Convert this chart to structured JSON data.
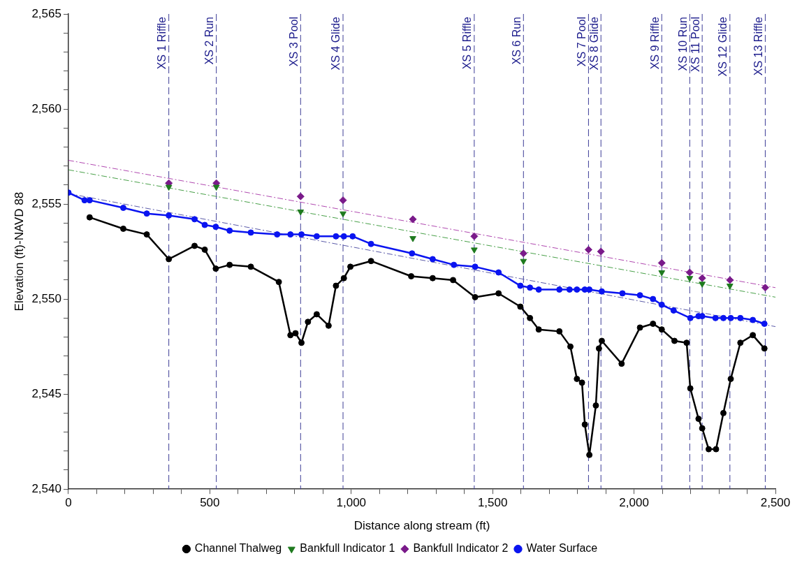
{
  "chart_data": {
    "type": "line",
    "xlabel": "Distance along stream (ft)",
    "ylabel": "Elevation (ft)-NAVD 88",
    "xlim": [
      0,
      2500
    ],
    "xticks": [
      {
        "value": 0,
        "label": "0"
      },
      {
        "value": 100,
        "label": null
      },
      {
        "value": 200,
        "label": null
      },
      {
        "value": 300,
        "label": null
      },
      {
        "value": 400,
        "label": null
      },
      {
        "value": 500,
        "label": "500"
      },
      {
        "value": 600,
        "label": null
      },
      {
        "value": 700,
        "label": null
      },
      {
        "value": 800,
        "label": null
      },
      {
        "value": 900,
        "label": null
      },
      {
        "value": 1000,
        "label": "1,000"
      },
      {
        "value": 1100,
        "label": null
      },
      {
        "value": 1200,
        "label": null
      },
      {
        "value": 1300,
        "label": null
      },
      {
        "value": 1400,
        "label": null
      },
      {
        "value": 1500,
        "label": "1,500"
      },
      {
        "value": 1600,
        "label": null
      },
      {
        "value": 1700,
        "label": null
      },
      {
        "value": 1800,
        "label": null
      },
      {
        "value": 1900,
        "label": null
      },
      {
        "value": 2000,
        "label": "2,000"
      },
      {
        "value": 2100,
        "label": null
      },
      {
        "value": 2200,
        "label": null
      },
      {
        "value": 2300,
        "label": null
      },
      {
        "value": 2400,
        "label": null
      },
      {
        "value": 2500,
        "label": "2,500"
      }
    ],
    "ylim": [
      2540,
      2565
    ],
    "yticks": [
      {
        "value": 2540,
        "label": "2,540"
      },
      {
        "value": 2541,
        "label": null
      },
      {
        "value": 2542,
        "label": null
      },
      {
        "value": 2543,
        "label": null
      },
      {
        "value": 2544,
        "label": null
      },
      {
        "value": 2545,
        "label": "2,545"
      },
      {
        "value": 2546,
        "label": null
      },
      {
        "value": 2547,
        "label": null
      },
      {
        "value": 2548,
        "label": null
      },
      {
        "value": 2549,
        "label": null
      },
      {
        "value": 2550,
        "label": "2,550"
      },
      {
        "value": 2551,
        "label": null
      },
      {
        "value": 2552,
        "label": null
      },
      {
        "value": 2553,
        "label": null
      },
      {
        "value": 2554,
        "label": null
      },
      {
        "value": 2555,
        "label": "2,555"
      },
      {
        "value": 2556,
        "label": null
      },
      {
        "value": 2557,
        "label": null
      },
      {
        "value": 2558,
        "label": null
      },
      {
        "value": 2559,
        "label": null
      },
      {
        "value": 2560,
        "label": "2,560"
      },
      {
        "value": 2561,
        "label": null
      },
      {
        "value": 2562,
        "label": null
      },
      {
        "value": 2563,
        "label": null
      },
      {
        "value": 2564,
        "label": null
      },
      {
        "value": 2565,
        "label": "2,565"
      }
    ],
    "grid": false,
    "legend": "bottom",
    "series": [
      {
        "name": "Channel Thalweg",
        "color": "#000000",
        "marker": "circle",
        "line_style": "solid",
        "x": [
          75,
          194,
          277,
          355,
          446,
          482,
          521,
          570,
          645,
          744,
          785,
          803,
          824,
          847,
          878,
          920,
          946,
          974,
          997,
          1070,
          1212,
          1288,
          1360,
          1438,
          1521,
          1598,
          1632,
          1663,
          1736,
          1775,
          1798,
          1816,
          1826,
          1842,
          1865,
          1876,
          1886,
          1956,
          2021,
          2067,
          2098,
          2143,
          2186,
          2199,
          2228,
          2241,
          2264,
          2290,
          2316,
          2342,
          2376,
          2420,
          2461
        ],
        "values": [
          2554.3,
          2553.7,
          2553.4,
          2552.1,
          2552.8,
          2552.6,
          2551.6,
          2551.8,
          2551.7,
          2550.9,
          2548.1,
          2548.2,
          2547.7,
          2548.8,
          2549.2,
          2548.6,
          2550.7,
          2551.1,
          2551.7,
          2552.0,
          2551.2,
          2551.1,
          2551.0,
          2550.1,
          2550.3,
          2549.6,
          2549.0,
          2548.4,
          2548.3,
          2547.5,
          2545.8,
          2545.6,
          2543.4,
          2541.8,
          2544.4,
          2547.4,
          2547.8,
          2546.6,
          2548.5,
          2548.7,
          2548.4,
          2547.8,
          2547.7,
          2545.3,
          2543.7,
          2543.2,
          2542.1,
          2542.1,
          2544.0,
          2545.8,
          2547.7,
          2548.1,
          2547.4
        ]
      },
      {
        "name": "Bankfull Indicator 1",
        "type": "scatter",
        "color": "#1e7a1e",
        "marker": "triangle",
        "x": [
          355,
          523,
          821,
          971,
          1218,
          1435,
          1609,
          2098,
          2197,
          2241,
          2339
        ],
        "values": [
          2555.9,
          2555.9,
          2554.6,
          2554.5,
          2553.2,
          2552.6,
          2552.0,
          2551.4,
          2551.1,
          2550.8,
          2550.7
        ]
      },
      {
        "name": "Bankfull Indicator 2",
        "type": "scatter",
        "color": "#7a1a8a",
        "marker": "diamond",
        "x": [
          355,
          523,
          821,
          971,
          1218,
          1435,
          1609,
          1839,
          1883,
          2098,
          2197,
          2241,
          2339,
          2464
        ],
        "values": [
          2556.1,
          2556.1,
          2555.4,
          2555.2,
          2554.2,
          2553.3,
          2552.4,
          2552.6,
          2552.5,
          2551.9,
          2551.4,
          2551.1,
          2551.0,
          2550.6
        ]
      },
      {
        "name": "Water Surface",
        "color": "#0a14f0",
        "marker": "circle",
        "line_style": "solid",
        "x": [
          0,
          57,
          75,
          194,
          277,
          355,
          446,
          482,
          521,
          570,
          645,
          738,
          785,
          824,
          878,
          946,
          974,
          1005,
          1070,
          1215,
          1288,
          1363,
          1438,
          1521,
          1598,
          1632,
          1663,
          1736,
          1772,
          1798,
          1826,
          1842,
          1886,
          1959,
          2021,
          2067,
          2098,
          2140,
          2199,
          2228,
          2241,
          2288,
          2316,
          2342,
          2376,
          2420,
          2461
        ],
        "values": [
          2555.6,
          2555.2,
          2555.2,
          2554.8,
          2554.5,
          2554.4,
          2554.2,
          2553.9,
          2553.8,
          2553.6,
          2553.5,
          2553.4,
          2553.4,
          2553.4,
          2553.3,
          2553.3,
          2553.3,
          2553.3,
          2552.9,
          2552.4,
          2552.1,
          2551.8,
          2551.7,
          2551.4,
          2550.7,
          2550.6,
          2550.5,
          2550.5,
          2550.5,
          2550.5,
          2550.5,
          2550.5,
          2550.4,
          2550.3,
          2550.2,
          2550.0,
          2549.7,
          2549.4,
          2549.0,
          2549.1,
          2549.1,
          2549.0,
          2549.0,
          2549.0,
          2549.0,
          2548.9,
          2548.7
        ]
      },
      {
        "color": "#b048b0",
        "marker": "none",
        "line_style": "dashed",
        "x": [
          0,
          2500
        ],
        "values": [
          2557.3,
          2550.6
        ]
      },
      {
        "color": "#48a048",
        "marker": "none",
        "line_style": "dashed",
        "x": [
          0,
          2500
        ],
        "values": [
          2556.8,
          2550.1
        ]
      },
      {
        "color": "#5a5aa8",
        "marker": "none",
        "line_style": "dashed",
        "x": [
          0,
          2500
        ],
        "values": [
          2555.55,
          2548.55
        ]
      }
    ],
    "ref_lines": [
      {
        "axis": "x",
        "value": 355,
        "label": "XS 1 Riffle",
        "color": "#3c3c96",
        "line_style": "dashed"
      },
      {
        "axis": "x",
        "value": 523,
        "label": "XS 2 Run",
        "color": "#3c3c96",
        "line_style": "dashed"
      },
      {
        "axis": "x",
        "value": 821,
        "label": "XS 3 Pool",
        "color": "#3c3c96",
        "line_style": "dashed"
      },
      {
        "axis": "x",
        "value": 971,
        "label": "XS 4 Glide",
        "color": "#3c3c96",
        "line_style": "dashed"
      },
      {
        "axis": "x",
        "value": 1435,
        "label": "XS 5 Riffle",
        "color": "#3c3c96",
        "line_style": "dashed"
      },
      {
        "axis": "x",
        "value": 1609,
        "label": "XS 6 Run",
        "color": "#3c3c96",
        "line_style": "dashed"
      },
      {
        "axis": "x",
        "value": 1839,
        "label": "XS 7 Pool",
        "color": "#3c3c96",
        "line_style": "dashed"
      },
      {
        "axis": "x",
        "value": 1883,
        "label": "XS 8 Glide",
        "color": "#3c3c96",
        "line_style": "dashed"
      },
      {
        "axis": "x",
        "value": 2098,
        "label": "XS 9 Riffle",
        "color": "#3c3c96",
        "line_style": "dashed"
      },
      {
        "axis": "x",
        "value": 2197,
        "label": "XS 10 Run",
        "color": "#3c3c96",
        "line_style": "dashed"
      },
      {
        "axis": "x",
        "value": 2241,
        "label": "XS 11 Pool",
        "color": "#3c3c96",
        "line_style": "dashed"
      },
      {
        "axis": "x",
        "value": 2339,
        "label": "XS 12 Glide",
        "color": "#3c3c96",
        "line_style": "dashed"
      },
      {
        "axis": "x",
        "value": 2464,
        "label": "XS 13 Riffle",
        "color": "#3c3c96",
        "line_style": "dashed"
      }
    ]
  }
}
